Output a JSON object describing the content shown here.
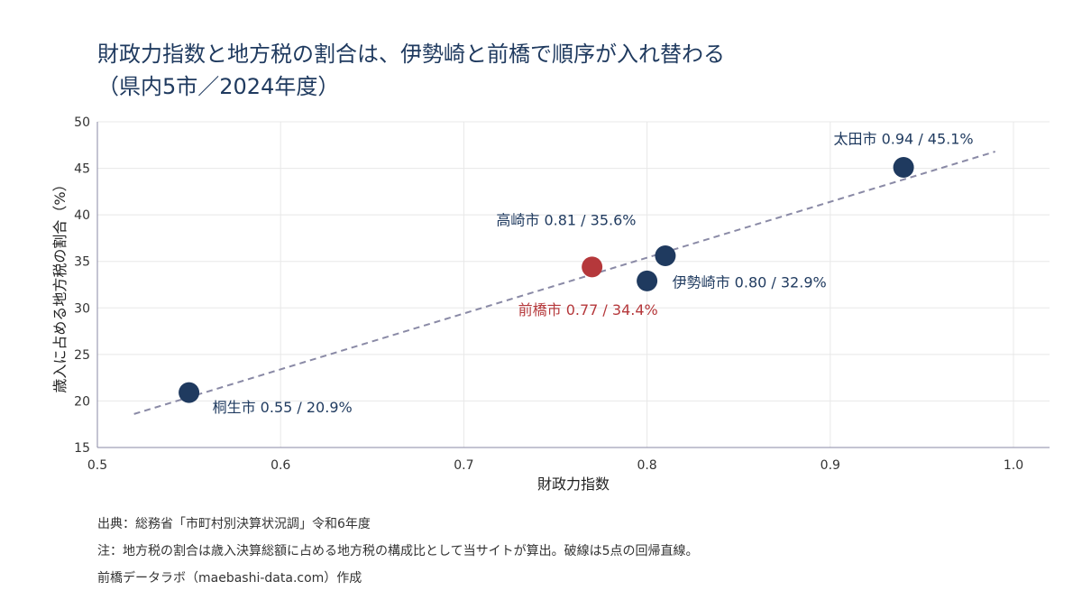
{
  "title": "財政力指数と地方税の割合は、伊勢崎と前橋で順序が入れ替わる",
  "subtitle": "（県内5市／2024年度）",
  "chart_data": {
    "type": "scatter",
    "title": "財政力指数と地方税の割合は、伊勢崎と前橋で順序が入れ替わる",
    "subtitle": "（県内5市／2024年度）",
    "xlabel": "財政力指数",
    "ylabel": "歳入に占める地方税の割合（%）",
    "xlim": [
      0.5,
      1.0
    ],
    "ylim": [
      15,
      50
    ],
    "xticks": [
      "0.5",
      "0.6",
      "0.7",
      "0.8",
      "0.9",
      "1.0"
    ],
    "yticks": [
      "15",
      "20",
      "25",
      "30",
      "35",
      "40",
      "45",
      "50"
    ],
    "grid": true,
    "points": [
      {
        "name": "太田市",
        "x": 0.94,
        "y": 45.1,
        "label": "太田市  0.94 / 45.1%",
        "highlight": false
      },
      {
        "name": "高崎市",
        "x": 0.81,
        "y": 35.6,
        "label": "高崎市  0.81 / 35.6%",
        "highlight": false
      },
      {
        "name": "伊勢崎市",
        "x": 0.8,
        "y": 32.9,
        "label": "伊勢崎市  0.80 / 32.9%",
        "highlight": false
      },
      {
        "name": "前橋市",
        "x": 0.77,
        "y": 34.4,
        "label": "前橋市  0.77 / 34.4%",
        "highlight": true
      },
      {
        "name": "桐生市",
        "x": 0.55,
        "y": 20.9,
        "label": "桐生市  0.55 / 20.9%",
        "highlight": false
      }
    ],
    "regression": {
      "x": [
        0.52,
        0.99
      ],
      "y": [
        18.6,
        46.8
      ],
      "style": "dashed"
    },
    "colors": {
      "point": "#1f3a5f",
      "highlight": "#b5383b",
      "regression": "#8a8aa6",
      "grid": "#e8e8e8",
      "axis": "#8a8aa6"
    }
  },
  "footer": {
    "source": "出典：総務省「市町村別決算状況調」令和6年度",
    "note": "注：地方税の割合は歳入決算総額に占める地方税の構成比として当サイトが算出。破線は5点の回帰直線。",
    "credit": "前橋データラボ（maebashi-data.com）作成"
  }
}
